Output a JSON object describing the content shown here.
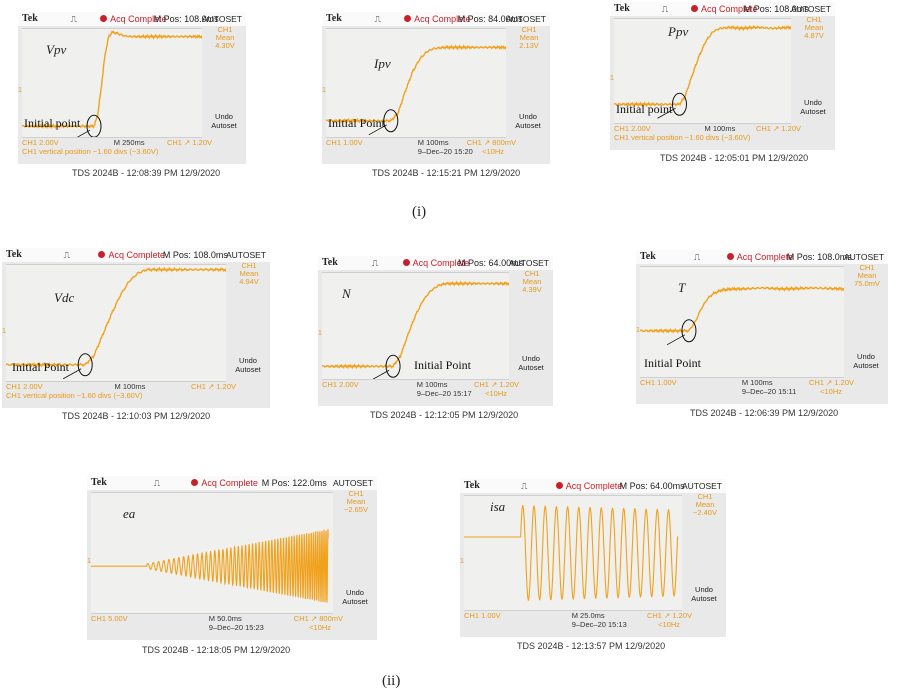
{
  "panel_labels": [
    "(i)",
    "(ii)"
  ],
  "common": {
    "brand": "Tek",
    "acq": "Acq Complete",
    "autoset": "AUTOSET",
    "undo_line1": "Undo",
    "undo_line2": "Autoset",
    "ch_name": "CH1",
    "mean_label": "Mean",
    "marker": "1",
    "initial_point": "Initial point",
    "initial_point_cap": "Initial Point"
  },
  "colors": {
    "trace": "#f0a21e",
    "acq": "#c8202a",
    "screen_bg": "#e9e9e9",
    "grid": "#f0f0ee"
  },
  "chart_data": [
    {
      "id": "vpv",
      "type": "line",
      "signal_label": "Vpv",
      "ip_text": "Initial point",
      "mpos": "M Pos: 108.0ms",
      "mean": "4.30V",
      "ch_scale": "CH1  2.00V",
      "timebase": "M 250ms",
      "date": "",
      "trigger": "CH1 ↗ 1.20V",
      "trig_freq": "",
      "vpos": "CH1 vertical position −1.60 divs (−3.60V)",
      "caption": "TDS 2024B - 12:08:39 PM    12/9/2020",
      "x": [
        0,
        0.4,
        0.42,
        0.44,
        0.46,
        0.48,
        0.5,
        0.53,
        0.56,
        0.6,
        0.7,
        0.8,
        1.0
      ],
      "y": [
        0.1,
        0.1,
        0.2,
        0.45,
        0.75,
        0.92,
        0.97,
        0.96,
        0.94,
        0.93,
        0.93,
        0.93,
        0.93
      ]
    },
    {
      "id": "ipv",
      "type": "line",
      "signal_label": "Ipv",
      "ip_text": "Initial Point",
      "mpos": "M Pos: 84.00ms",
      "mean": "2.13V",
      "ch_scale": "CH1  1.00V",
      "timebase": "M 100ms",
      "date": "9–Dec–20 15:20",
      "trigger": "CH1 ↗ 800mV",
      "trig_freq": "<10Hz",
      "vpos": "",
      "caption": "TDS 2024B - 12:15:21 PM    12/9/2020",
      "x": [
        0,
        0.36,
        0.4,
        0.44,
        0.48,
        0.52,
        0.56,
        0.6,
        0.66,
        0.72,
        0.8,
        0.9,
        1.0
      ],
      "y": [
        0.15,
        0.15,
        0.22,
        0.42,
        0.6,
        0.72,
        0.79,
        0.82,
        0.83,
        0.83,
        0.83,
        0.83,
        0.83
      ]
    },
    {
      "id": "ppv",
      "type": "line",
      "signal_label": "Ppv",
      "ip_text": "Initial point",
      "mpos": "M Pos: 108.0ms",
      "mean": "4.87V",
      "ch_scale": "CH1  2.00V",
      "timebase": "M 100ms",
      "date": "",
      "trigger": "CH1 ↗ 1.20V",
      "trig_freq": "",
      "vpos": "CH1 vertical position −1.60 divs (−3.60V)",
      "caption": "TDS 2024B - 12:05:01 PM    12/9/2020",
      "x": [
        0,
        0.37,
        0.4,
        0.44,
        0.48,
        0.52,
        0.56,
        0.6,
        0.66,
        0.72,
        0.8,
        0.9,
        1.0
      ],
      "y": [
        0.18,
        0.18,
        0.25,
        0.45,
        0.64,
        0.79,
        0.88,
        0.91,
        0.92,
        0.91,
        0.92,
        0.91,
        0.92
      ]
    },
    {
      "id": "vdc",
      "type": "line",
      "signal_label": "Vdc",
      "ip_text": "Initial Point",
      "mpos": "M Pos: 108.0ms",
      "mean": "4.94V",
      "ch_scale": "CH1  2.00V",
      "timebase": "M 100ms",
      "date": "",
      "trigger": "CH1 ↗ 1.20V",
      "trig_freq": "",
      "vpos": "CH1 vertical position −1.60 divs (−3.60V)",
      "caption": "TDS 2024B - 12:10:03 PM    12/9/2020",
      "x": [
        0,
        0.36,
        0.4,
        0.44,
        0.48,
        0.52,
        0.56,
        0.6,
        0.64,
        0.68,
        0.75,
        0.85,
        1.0
      ],
      "y": [
        0.14,
        0.14,
        0.22,
        0.4,
        0.58,
        0.74,
        0.86,
        0.93,
        0.96,
        0.96,
        0.96,
        0.96,
        0.96
      ]
    },
    {
      "id": "n",
      "type": "line",
      "signal_label": "N",
      "ip_text": "Initial Point",
      "mpos": "M Pos: 64.00ms",
      "mean": "4.39V",
      "ch_scale": "CH1  2.00V",
      "timebase": "M 100ms",
      "date": "9–Dec–20 15:17",
      "trigger": "CH1 ↗ 1.20V",
      "trig_freq": "<10Hz",
      "vpos": "",
      "caption": "TDS 2024B - 12:12:05 PM    12/9/2020",
      "x": [
        0,
        0.38,
        0.42,
        0.46,
        0.5,
        0.54,
        0.58,
        0.62,
        0.66,
        0.72,
        0.8,
        0.9,
        1.0
      ],
      "y": [
        0.12,
        0.12,
        0.22,
        0.42,
        0.6,
        0.74,
        0.83,
        0.88,
        0.9,
        0.9,
        0.9,
        0.9,
        0.9
      ]
    },
    {
      "id": "t",
      "type": "line",
      "signal_label": "T",
      "ip_text": "Initial Point",
      "mpos": "M Pos: 108.0ms",
      "mean": "75.0mV",
      "ch_scale": "CH1  1.00V",
      "timebase": "M 100ms",
      "date": "9–Dec–20 15:11",
      "trigger": "CH1 ↗ 1.20V",
      "trig_freq": "<10Hz",
      "vpos": "",
      "caption": "TDS 2024B - 12:06:39 PM    12/9/2020",
      "x": [
        0,
        0.24,
        0.27,
        0.3,
        0.33,
        0.36,
        0.4,
        0.45,
        0.5,
        0.6,
        0.7,
        0.85,
        1.0
      ],
      "y": [
        0.42,
        0.42,
        0.5,
        0.62,
        0.71,
        0.76,
        0.79,
        0.8,
        0.8,
        0.81,
        0.8,
        0.81,
        0.8
      ]
    },
    {
      "id": "ea",
      "type": "line",
      "signal_label": "ea",
      "ip_text": "",
      "mpos": "M Pos: 122.0ms",
      "mean": "−2.65V",
      "ch_scale": "CH1  5.00V",
      "timebase": "M 50.0ms",
      "date": "9–Dec–20 15:23",
      "trigger": "CH1 ↗ 800mV",
      "trig_freq": "<10Hz",
      "vpos": "",
      "caption": "TDS 2024B - 12:18:05 PM    12/9/2020",
      "oscillation": {
        "start": 0.23,
        "cycles": 60,
        "center": 0.39,
        "amplitude": [
          0.02,
          0.31
        ],
        "period_ratio": [
          1.0,
          0.35
        ]
      }
    },
    {
      "id": "isa",
      "type": "line",
      "signal_label": "isa",
      "ip_text": "",
      "mpos": "M Pos: 64.00ms",
      "mean": "−2.40V",
      "ch_scale": "CH1  1.00V",
      "timebase": "M 25.0ms",
      "date": "9–Dec–20 15:13",
      "trigger": "CH1 ↗ 1.20V",
      "trig_freq": "<10Hz",
      "vpos": "",
      "caption": "TDS 2024B - 12:13:57 PM    12/9/2020",
      "oscillation": {
        "start": 0.26,
        "cycles": 14,
        "center": 0.5,
        "amplitude": [
          0.42,
          0.38
        ],
        "period_ratio": [
          1.0,
          1.0
        ],
        "baseline": 0.64
      }
    }
  ]
}
